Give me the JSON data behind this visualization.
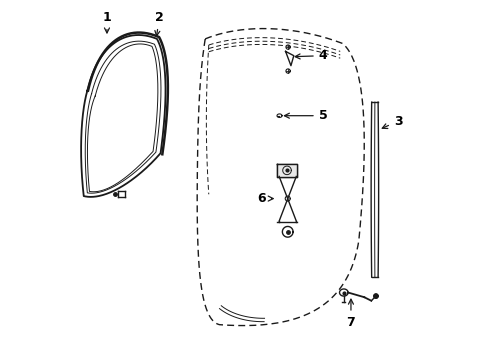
{
  "background_color": "#ffffff",
  "line_color": "#1a1a1a",
  "label_color": "#000000",
  "figsize": [
    4.89,
    3.6
  ],
  "dpi": 100
}
